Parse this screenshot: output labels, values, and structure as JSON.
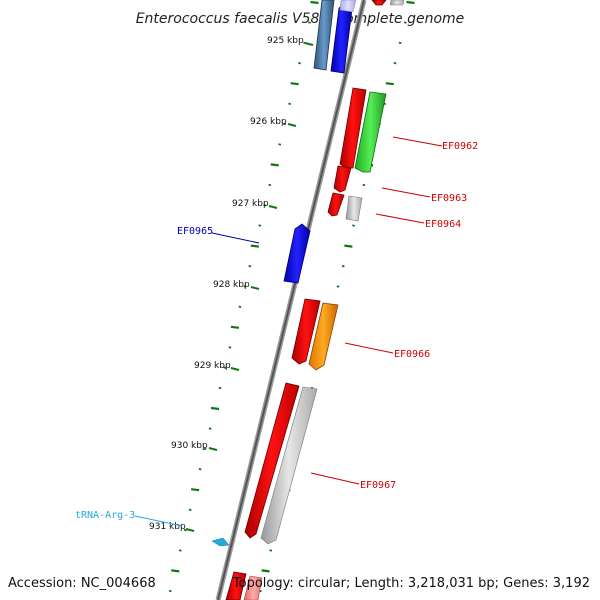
{
  "title": "Enterococcus faecalis V583, complete genome",
  "footer": {
    "accession": "Accession: NC_004668",
    "summary": "Topology: circular; Length: 3,218,031 bp; Genes: 3,192"
  },
  "ruler": [
    "925 kbp",
    "926 kbp",
    "927 kbp",
    "928 kbp",
    "929 kbp",
    "930 kbp",
    "931 kbp"
  ],
  "genes": [
    {
      "label": "EF0962",
      "color": "#cc0000"
    },
    {
      "label": "EF0963",
      "color": "#cc0000"
    },
    {
      "label": "EF0964",
      "color": "#cc0000"
    },
    {
      "label": "EF0965",
      "color": "#0000aa"
    },
    {
      "label": "EF0966",
      "color": "#cc0000"
    },
    {
      "label": "EF0967",
      "color": "#cc0000"
    },
    {
      "label": "tRNA-Arg-3",
      "color": "#22aadd"
    }
  ],
  "colors": {
    "backbone": "#777777",
    "tick": "#117711",
    "red": "#ee0000",
    "green": "#33cc33",
    "orange": "#ff9900",
    "blue": "#0000ee",
    "steel": "#4477aa",
    "grey": "#bbbbbb",
    "trna": "#22aadd"
  }
}
